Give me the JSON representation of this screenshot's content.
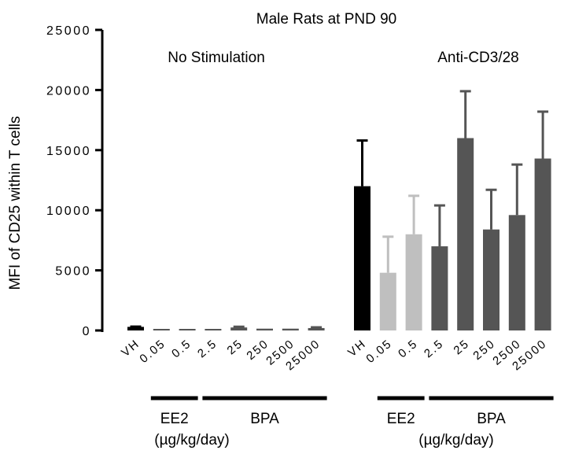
{
  "chart_data": {
    "type": "bar",
    "title": "Male Rats at PND 90",
    "ylabel": "MFI of CD25 within T cells",
    "xlabel": "",
    "ylim": [
      0,
      25000
    ],
    "yticks": [
      0,
      5000,
      10000,
      15000,
      20000,
      25000
    ],
    "categories": [
      "VH",
      "0.05",
      "0.5",
      "2.5",
      "25",
      "250",
      "2500",
      "25000"
    ],
    "groups": [
      {
        "name": "No Stimulation",
        "values": [
          300,
          80,
          100,
          120,
          250,
          150,
          150,
          200
        ],
        "errors": [
          20,
          20,
          20,
          30,
          60,
          30,
          30,
          60
        ],
        "colors": [
          "#000000",
          "#555555",
          "#555555",
          "#555555",
          "#555555",
          "#555555",
          "#555555",
          "#555555"
        ],
        "subgroups": [
          {
            "label": "EE2",
            "from": 1,
            "to": 2
          },
          {
            "label": "BPA",
            "from": 3,
            "to": 7
          }
        ]
      },
      {
        "name": "Anti-CD3/28",
        "values": [
          12000,
          4800,
          8000,
          7000,
          16000,
          8400,
          9600,
          14300
        ],
        "errors": [
          3800,
          3000,
          3200,
          3400,
          3900,
          3300,
          4200,
          3900
        ],
        "colors": [
          "#000000",
          "#bfbfbf",
          "#bfbfbf",
          "#555555",
          "#555555",
          "#555555",
          "#555555",
          "#555555"
        ],
        "subgroups": [
          {
            "label": "EE2",
            "from": 1,
            "to": 2
          },
          {
            "label": "BPA",
            "from": 3,
            "to": 7
          }
        ]
      }
    ],
    "unit_label": "(µg/kg/day)",
    "grid": false
  }
}
